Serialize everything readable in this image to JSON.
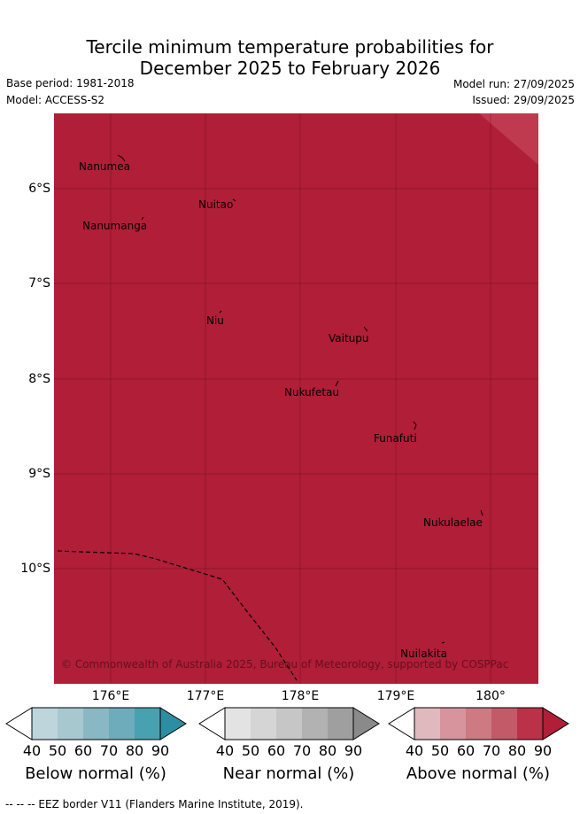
{
  "title": {
    "line1": "Tercile minimum temperature probabilities for",
    "line2": "December 2025 to February 2026"
  },
  "meta": {
    "base_period": "Base period: 1981-2018",
    "model": "Model: ACCESS-S2",
    "model_run": "Model run: 27/09/2025",
    "issued": "Issued: 29/09/2025"
  },
  "map": {
    "fill_color": "#b01e37",
    "lat_labels": [
      "6°S",
      "7°S",
      "8°S",
      "9°S",
      "10°S"
    ],
    "lon_labels": [
      "176°E",
      "177°E",
      "178°E",
      "179°E",
      "180°"
    ],
    "islands": [
      "Nanumea",
      "Nuitao",
      "Nanumanga",
      "Niu",
      "Vaitupu",
      "Nukufetau",
      "Funafuti",
      "Nukulaelae",
      "Nuilakita"
    ],
    "credit": "© Commonwealth of Australia 2025, Bureau of Meteorology, supported by COSPPac"
  },
  "legend": {
    "ticks": [
      "40",
      "50",
      "60",
      "70",
      "80",
      "90"
    ],
    "below": {
      "label": "Below normal (%)",
      "colors": [
        "#bdd5db",
        "#a6c8ce",
        "#89b8c4",
        "#6eacbb",
        "#48a1b0",
        "#2c8ea3"
      ]
    },
    "near": {
      "label": "Near normal (%)",
      "colors": [
        "#e3e3e3",
        "#d5d5d5",
        "#c6c6c6",
        "#b2b2b2",
        "#9f9f9f",
        "#8a8a8a"
      ]
    },
    "above": {
      "label": "Above normal (%)",
      "colors": [
        "#e0b9be",
        "#d7949c",
        "#cd7a83",
        "#c35a68",
        "#ba3148",
        "#b01e37"
      ]
    }
  },
  "footer": "-- -- -- EEZ border V11 (Flanders Marine Institute, 2019)."
}
